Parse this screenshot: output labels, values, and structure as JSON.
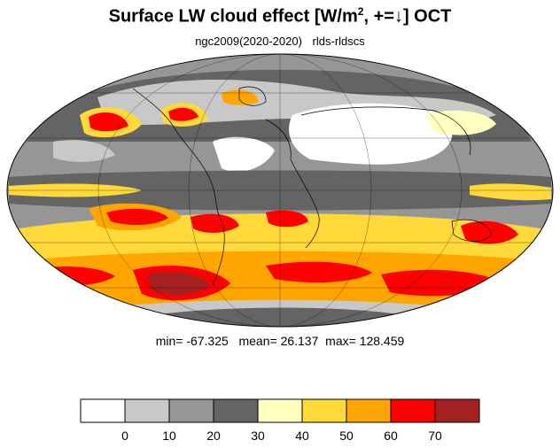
{
  "title": {
    "main": "Surface LW cloud effect [W/m",
    "superscript": "2",
    "suffix": ", +=↓]  OCT"
  },
  "subtitle": {
    "case": "ngc2009(2020-2020)",
    "variable": "rlds-rldscs"
  },
  "stats": {
    "min_label": "min=",
    "min": "-67.325",
    "mean_label": "mean=",
    "mean": "26.137",
    "max_label": "max=",
    "max": "128.459"
  },
  "colorbar": {
    "colors": [
      "#ffffff",
      "#c8c8c8",
      "#969696",
      "#646464",
      "#ffffc0",
      "#ffd83a",
      "#ffa500",
      "#ff0000",
      "#a52020"
    ],
    "tick_labels": [
      "0",
      "10",
      "20",
      "30",
      "40",
      "50",
      "60",
      "70"
    ]
  }
}
